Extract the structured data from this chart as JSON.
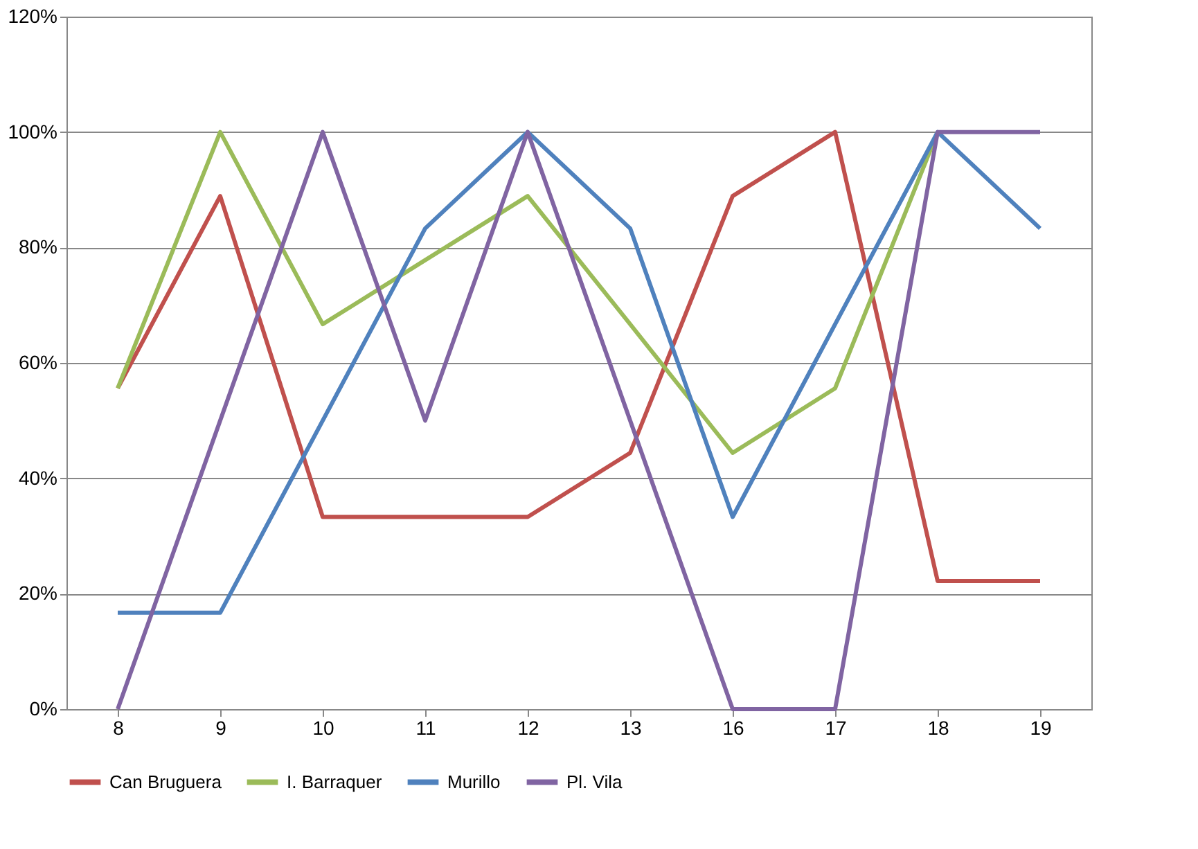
{
  "chart_data": {
    "type": "line",
    "categories": [
      "8",
      "9",
      "10",
      "11",
      "12",
      "13",
      "16",
      "17",
      "18",
      "19"
    ],
    "series": [
      {
        "name": "Can Bruguera",
        "color": "#c0504d",
        "values": [
          55.6,
          88.9,
          33.3,
          33.3,
          33.3,
          44.4,
          88.9,
          100,
          22.2,
          22.2
        ]
      },
      {
        "name": "I. Barraquer",
        "color": "#9bbb59",
        "values": [
          55.6,
          100,
          66.7,
          77.8,
          88.9,
          66.7,
          44.4,
          55.6,
          100,
          null
        ]
      },
      {
        "name": "Murillo",
        "color": "#4f81bd",
        "values": [
          16.7,
          16.7,
          50,
          83.3,
          100,
          83.3,
          33.3,
          66.7,
          100,
          83.3
        ]
      },
      {
        "name": "Pl. Vila",
        "color": "#8064a2",
        "values": [
          0,
          50,
          100,
          50,
          100,
          50,
          0,
          0,
          100,
          100
        ]
      }
    ],
    "ylim": [
      0,
      120
    ],
    "yticks": [
      {
        "value": 0,
        "label": "0%"
      },
      {
        "value": 20,
        "label": "20%"
      },
      {
        "value": 40,
        "label": "40%"
      },
      {
        "value": 60,
        "label": "60%"
      },
      {
        "value": 80,
        "label": "80%"
      },
      {
        "value": 100,
        "label": "100%"
      },
      {
        "value": 120,
        "label": "120%"
      }
    ],
    "grid": "y",
    "legend": "bottom",
    "marker": "none",
    "line_style": "solid"
  }
}
